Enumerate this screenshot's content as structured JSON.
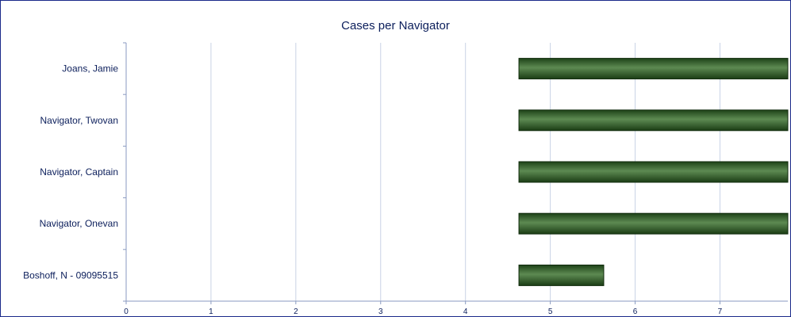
{
  "chart_data": {
    "type": "bar",
    "orientation": "horizontal",
    "title": "Cases per Navigator",
    "categories": [
      "Joans, Jamie",
      "Navigator, Twovan",
      "Navigator, Captain",
      "Navigator, Onevan",
      "Boshoff, N - 09095515"
    ],
    "bar_start": 4.63,
    "values": [
      7.8,
      7.8,
      7.8,
      7.8,
      5.63
    ],
    "xlim": [
      0,
      7.8
    ],
    "xticks": [
      "0",
      "1",
      "2",
      "3",
      "4",
      "5",
      "6",
      "7"
    ],
    "grid": true,
    "bar_color": "#2e5e24"
  }
}
